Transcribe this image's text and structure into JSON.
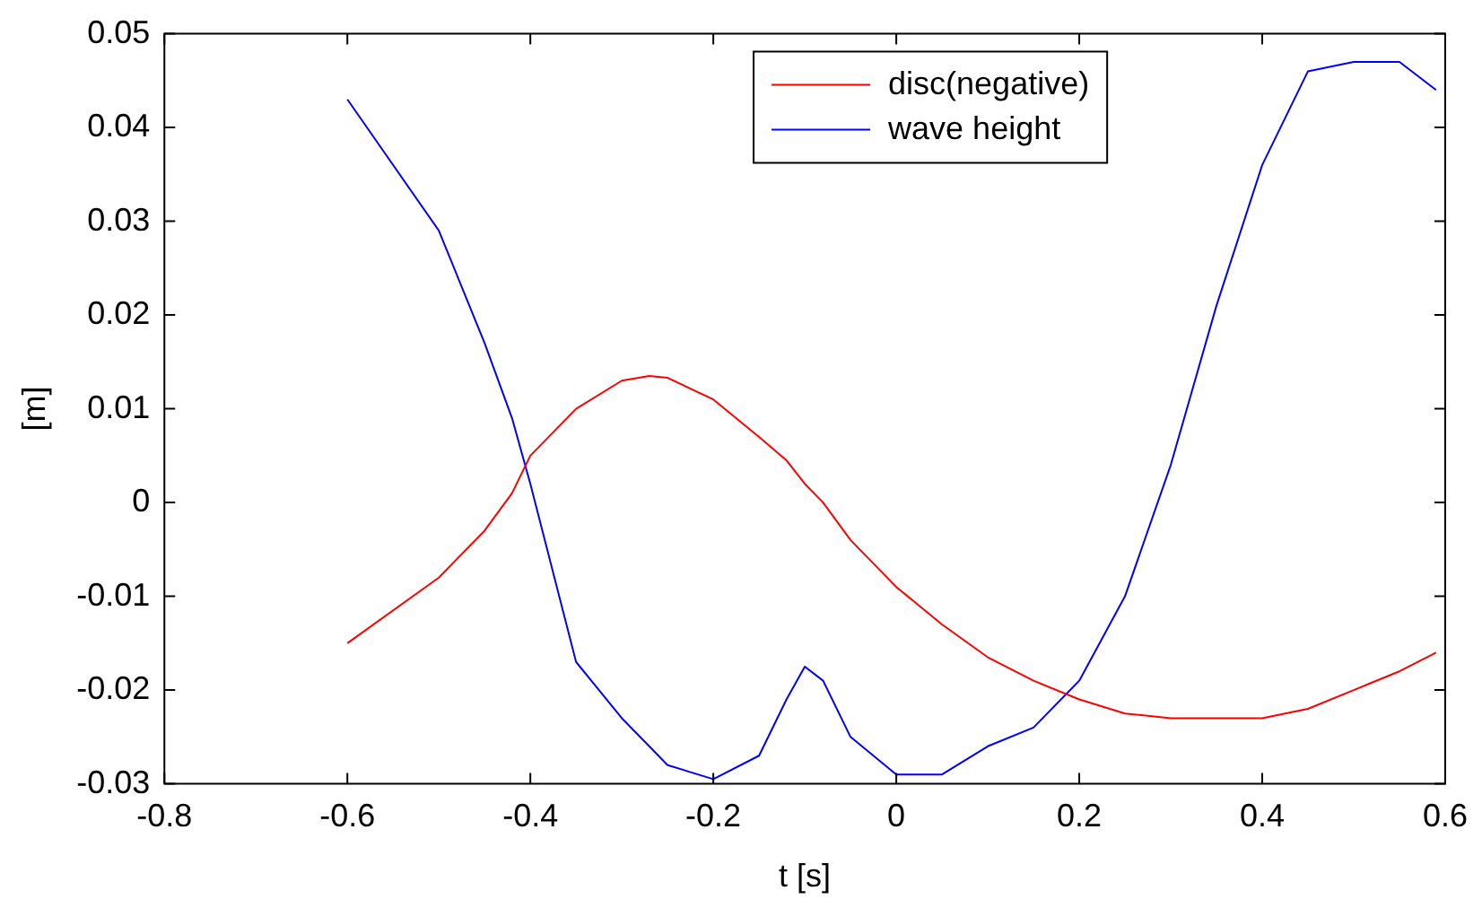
{
  "chart_data": {
    "type": "line",
    "xlabel": "t [s]",
    "ylabel": "[m]",
    "x": [
      -0.6,
      -0.5,
      -0.45,
      -0.42,
      -0.4,
      -0.35,
      -0.3,
      -0.27,
      -0.25,
      -0.2,
      -0.15,
      -0.12,
      -0.1,
      -0.08,
      -0.05,
      0,
      0.05,
      0.1,
      0.15,
      0.2,
      0.25,
      0.3,
      0.35,
      0.4,
      0.45,
      0.5,
      0.55,
      0.59
    ],
    "series": [
      {
        "name": "disc(negative)",
        "color": "#ff0000",
        "values": [
          -0.015,
          -0.008,
          -0.003,
          0.001,
          0.005,
          0.01,
          0.013,
          0.0135,
          0.0133,
          0.011,
          0.007,
          0.0045,
          0.002,
          0,
          -0.004,
          -0.009,
          -0.013,
          -0.0165,
          -0.019,
          -0.021,
          -0.0225,
          -0.023,
          -0.023,
          -0.023,
          -0.022,
          -0.02,
          -0.018,
          -0.016
        ]
      },
      {
        "name": "wave height",
        "color": "#0000ff",
        "values": [
          0.043,
          0.029,
          0.017,
          0.009,
          0.002,
          -0.017,
          -0.023,
          -0.026,
          -0.028,
          -0.0295,
          -0.027,
          -0.021,
          -0.0175,
          -0.019,
          -0.025,
          -0.029,
          -0.029,
          -0.026,
          -0.024,
          -0.019,
          -0.01,
          0.004,
          0.021,
          0.036,
          0.046,
          0.047,
          0.047,
          0.044
        ]
      }
    ],
    "xlim": [
      -0.8,
      0.6
    ],
    "xticks": [
      -0.8,
      -0.6,
      -0.4,
      -0.2,
      0,
      0.2,
      0.4,
      0.6
    ],
    "ylim": [
      -0.03,
      0.05
    ],
    "yticks": [
      -0.03,
      -0.02,
      -0.01,
      0,
      0.01,
      0.02,
      0.03,
      0.04,
      0.05
    ],
    "grid": false,
    "legend": "top",
    "marker": "none",
    "line_style": "solid"
  }
}
